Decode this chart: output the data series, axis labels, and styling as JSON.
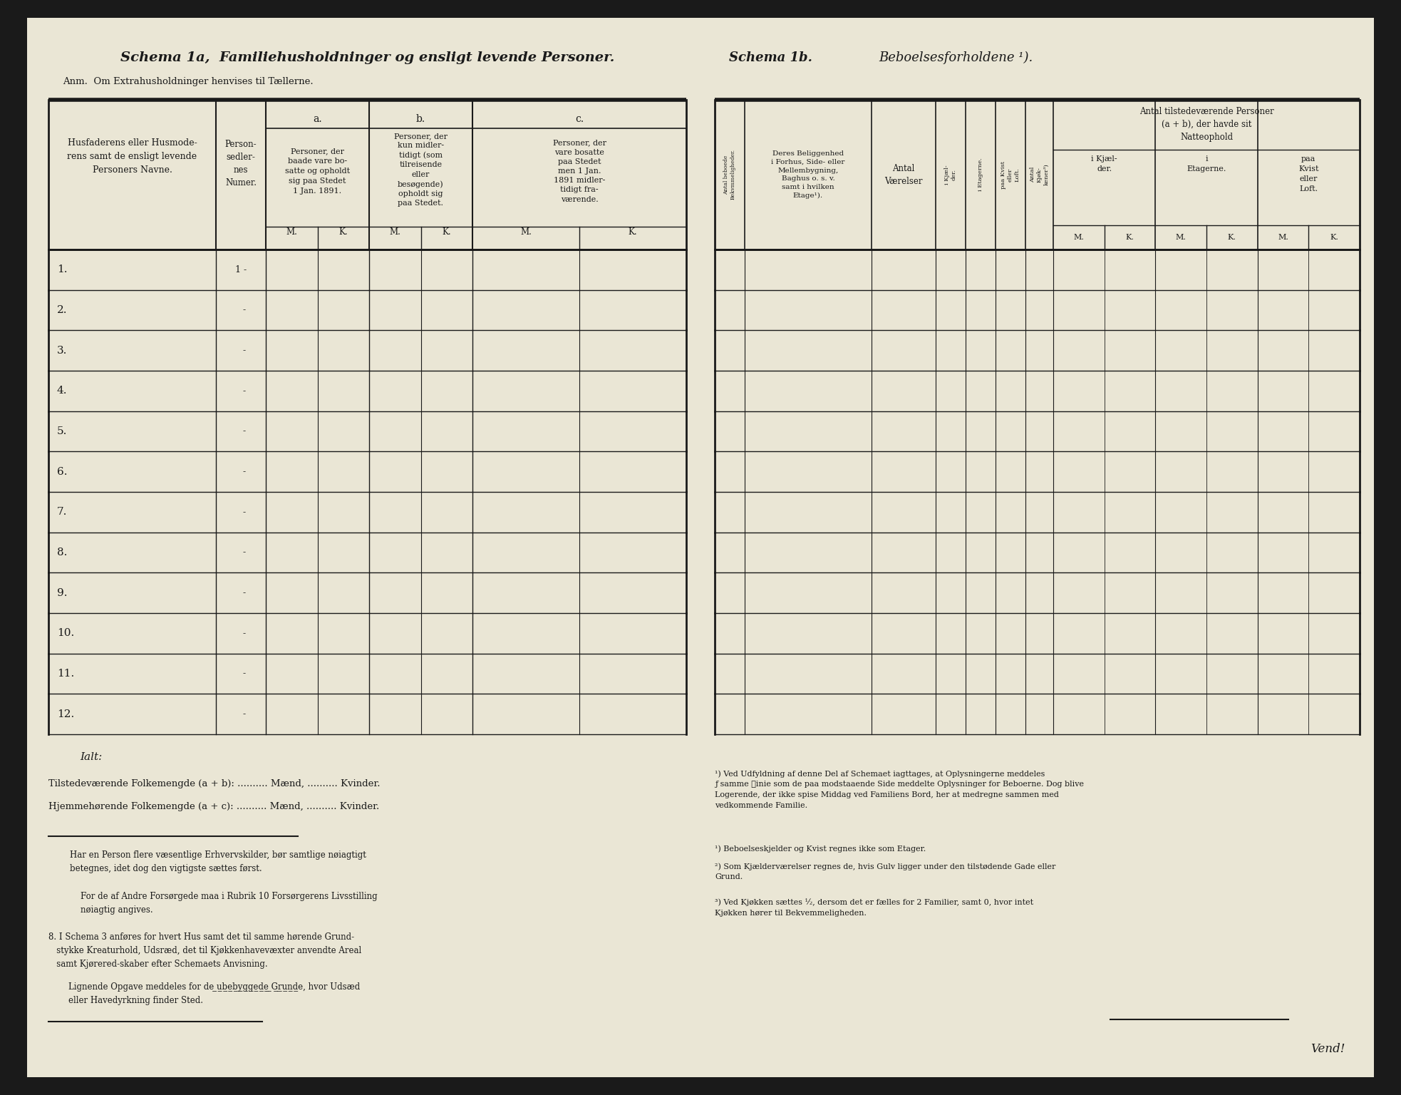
{
  "outer_bg": "#1a1a1a",
  "paper_color": "#eae6d5",
  "text_color": "#1a1a1a",
  "border_color": "#1a1a1a",
  "schema1a_title": "Schema 1a,  Familiehusholdninger og ensligt levende Personer.",
  "schema1a_anm": "Anm.  Om Extrahusholdninger henvises til Tællerne.",
  "schema1b_title": "Schema 1b.",
  "schema1b_subtitle": "Beboelsesforholdene ¹).",
  "row_labels": [
    "1.",
    "2.",
    "3.",
    "4.",
    "5.",
    "6.",
    "7.",
    "8.",
    "9.",
    "10.",
    "11.",
    "12."
  ],
  "ialt_label": "Ialt:",
  "tilstede_label": "Tilstedeværende Folkemængde (a + b): .......... Mænd, .......... Kvinder.",
  "hjemme_label": "Hjemmehørende Folkemengde (a + c): .......... Mænd, .......... Kvinder.",
  "vend_label": "Vend!",
  "left_fn_indent": "    ",
  "right_fn1_line1": "¹) Ved Udfyldning af denne Del af Schemaet iagttages, at Oplysningerne meddeles",
  "right_fn1_line2": "ƒ samme ℓinie som de paa modstaaende Side meddelte Oplysninger for Beboerne. Dog blive",
  "right_fn1_line3": "Logerende, der ikke spise Middag ved Familiens Bord, her at medregne sammen med",
  "right_fn1_line4": "vedkommende Familie.",
  "right_fn2": "¹) Beboelseskjelder og Kvist regnes ikke som Etager.",
  "right_fn3_line1": "²) Som Kjælderværelser regnes de, hvis Gulv ligger under den tilstødende Gade eller",
  "right_fn3_line2": "Grund.",
  "right_fn4_line1": "³) Ved Kjøkken sættes ½, dersom det er fælles for 2 Familier, samt 0, hvor intet",
  "right_fn4_line2": "Kjøkken hører til Bekvemmeligheden."
}
